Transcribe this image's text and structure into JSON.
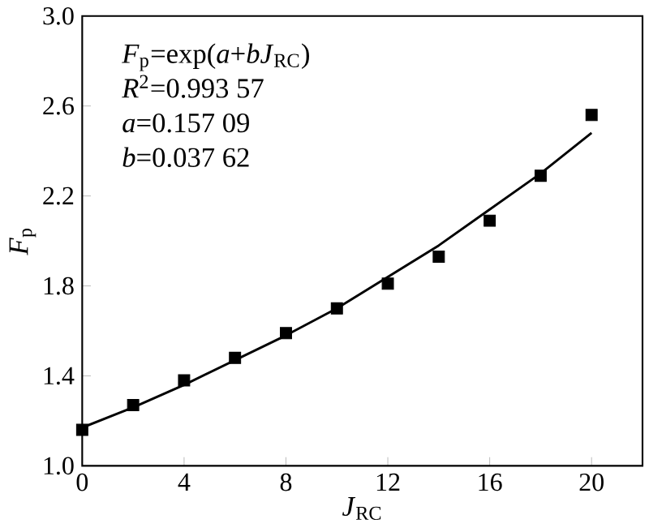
{
  "chart_data": {
    "type": "scatter",
    "xlabel": "*J*$_{RC}$",
    "ylabel": "*F*$_{p}$",
    "annotations": [
      "*F*$_{p}$=exp(*a*+*bJ*$_{RC}$)",
      "*R*$^{2}$=0.993 57",
      "*a*=0.157 09",
      "*b*=0.037 62"
    ],
    "xlim": [
      0,
      22
    ],
    "ylim": [
      1.0,
      3.0
    ],
    "xticks": [
      0,
      4,
      8,
      12,
      16,
      20
    ],
    "yticks": [
      {
        "value": 1.0,
        "label": "1.0"
      },
      1.4,
      1.8,
      2.2,
      2.6,
      {
        "value": 3.0,
        "label": "3.0"
      }
    ],
    "grid": false,
    "series": [
      {
        "marker": "square",
        "color": "#000000",
        "x": [
          0,
          2,
          4,
          6,
          8,
          10,
          12,
          14,
          16,
          18,
          20
        ],
        "values": [
          1.16,
          1.27,
          1.38,
          1.48,
          1.59,
          1.7,
          1.81,
          1.93,
          2.09,
          2.29,
          2.56
        ]
      },
      {
        "type": "line",
        "marker": "none",
        "line_style": "solid",
        "color": "#000000",
        "x": [
          0,
          2,
          4,
          6,
          8,
          10,
          12,
          14,
          16,
          18,
          20
        ],
        "values": [
          1.17,
          1.26,
          1.36,
          1.47,
          1.58,
          1.7,
          1.84,
          1.98,
          2.14,
          2.3,
          2.48
        ]
      }
    ]
  }
}
